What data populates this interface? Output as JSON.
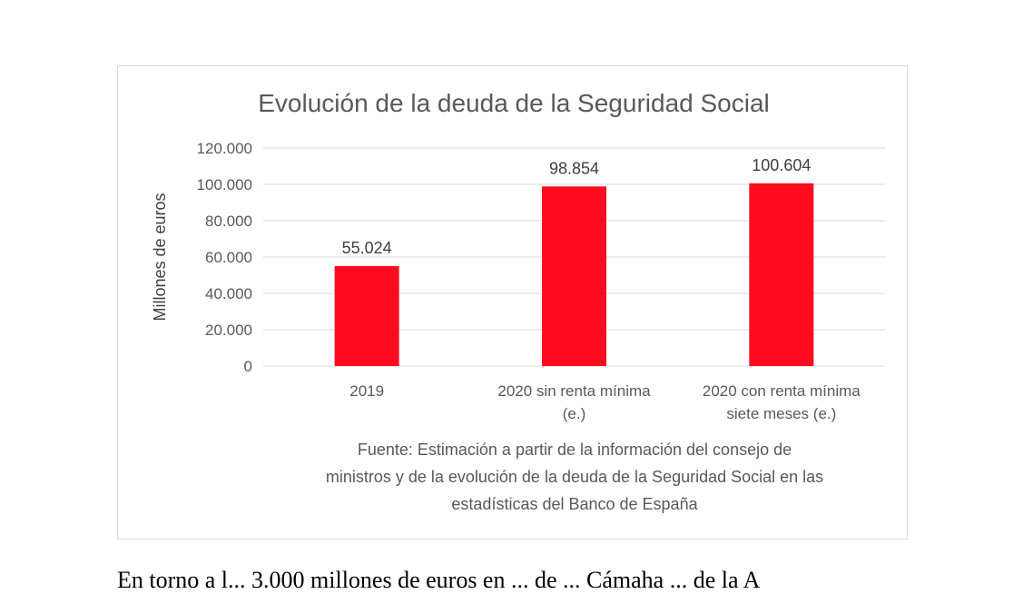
{
  "chart_data": {
    "type": "bar",
    "title": "Evolución de la deuda de la Seguridad Social",
    "ylabel": "Millones de euros",
    "xlabel": "",
    "ylim": [
      0,
      120000
    ],
    "yticks": [
      0,
      20000,
      40000,
      60000,
      80000,
      100000,
      120000
    ],
    "ytick_labels": [
      "0",
      "20.000",
      "40.000",
      "60.000",
      "80.000",
      "100.000",
      "120.000"
    ],
    "grid": true,
    "legend": "none",
    "bar_color": "#ff0a1e",
    "categories": [
      [
        "2019"
      ],
      [
        "2020 sin renta mínima",
        "(e.)"
      ],
      [
        "2020 con renta mínima",
        "siete meses (e.)"
      ]
    ],
    "values": [
      55024,
      98854,
      100604
    ],
    "value_labels": [
      "55.024",
      "98.854",
      "100.604"
    ],
    "source_lines": [
      "Fuente: Estimación a partir de la información del consejo de",
      "ministros y de la evolución de la deuda de la Seguridad Social en las",
      "estadísticas del Banco de España"
    ]
  },
  "body_text": "En torno a l... 3.000 millones de euros en ... de ... Cámaha ... de la A"
}
